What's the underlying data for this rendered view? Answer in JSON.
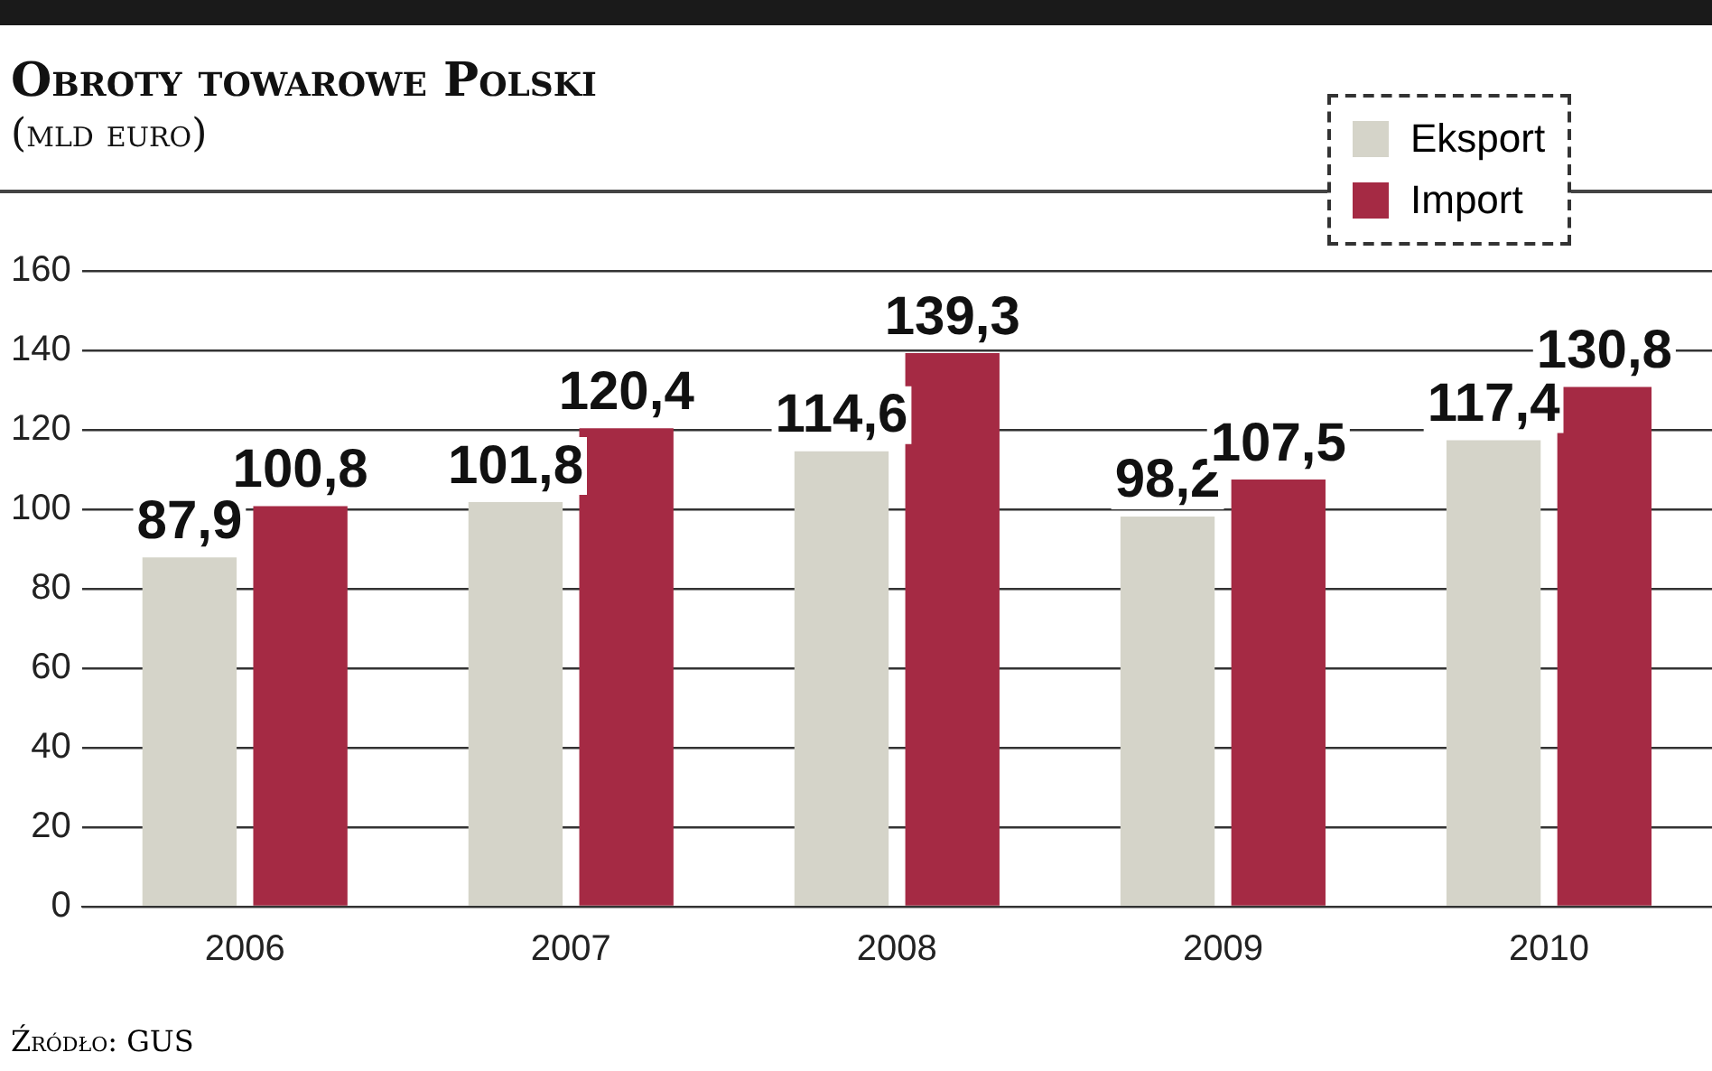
{
  "chart_data": {
    "type": "bar",
    "title": "Obroty towarowe Polski",
    "subtitle": "(mld euro)",
    "annotations": [
      "Źródło: GUS"
    ],
    "categories": [
      "2006",
      "2007",
      "2008",
      "2009",
      "2010"
    ],
    "series": [
      {
        "name": "Eksport",
        "color": "#d5d4c9",
        "values": [
          87.9,
          101.8,
          114.6,
          98.2,
          117.4
        ],
        "value_labels": [
          "87,9",
          "101,8",
          "114,6",
          "98,2",
          "117,4"
        ]
      },
      {
        "name": "Import",
        "color": "#a52a44",
        "values": [
          100.8,
          120.4,
          139.3,
          107.5,
          130.8
        ],
        "value_labels": [
          "100,8",
          "120,4",
          "139,3",
          "107,5",
          "130,8"
        ]
      }
    ],
    "ylim": [
      0,
      160
    ],
    "yticks": [
      0,
      20,
      40,
      60,
      80,
      100,
      120,
      140,
      160
    ],
    "grid": "y",
    "legend": "top right"
  }
}
